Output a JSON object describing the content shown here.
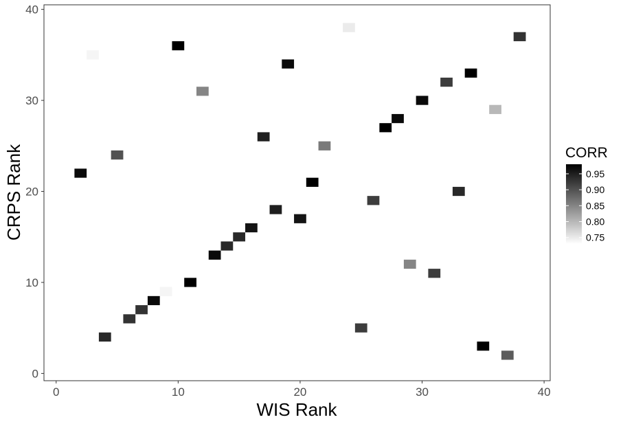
{
  "chart_data": {
    "type": "heatmap",
    "title": "",
    "xlabel": "WIS Rank",
    "ylabel": "CRPS Rank",
    "xlim": [
      -1,
      40.5
    ],
    "ylim": [
      -0.8,
      40.5
    ],
    "x_ticks": [
      0,
      10,
      20,
      30,
      40
    ],
    "y_ticks": [
      0,
      10,
      20,
      30,
      40
    ],
    "grid": false,
    "legend": {
      "title": "CORR",
      "placement": "right",
      "range": [
        0.73,
        0.98
      ],
      "ticks": [
        0.75,
        0.8,
        0.85,
        0.9,
        0.95
      ],
      "tick_labels": [
        "0.75",
        "0.80",
        "0.85",
        "0.90",
        "0.95"
      ]
    },
    "points": [
      {
        "x": 2,
        "y": 22,
        "corr": 0.97
      },
      {
        "x": 3,
        "y": 35,
        "corr": 0.74
      },
      {
        "x": 4,
        "y": 4,
        "corr": 0.94
      },
      {
        "x": 5,
        "y": 24,
        "corr": 0.9
      },
      {
        "x": 6,
        "y": 6,
        "corr": 0.93
      },
      {
        "x": 7,
        "y": 7,
        "corr": 0.93
      },
      {
        "x": 8,
        "y": 8,
        "corr": 0.97
      },
      {
        "x": 9,
        "y": 9,
        "corr": 0.74
      },
      {
        "x": 10,
        "y": 36,
        "corr": 0.98
      },
      {
        "x": 11,
        "y": 10,
        "corr": 0.98
      },
      {
        "x": 12,
        "y": 31,
        "corr": 0.85
      },
      {
        "x": 13,
        "y": 13,
        "corr": 0.97
      },
      {
        "x": 14,
        "y": 14,
        "corr": 0.94
      },
      {
        "x": 15,
        "y": 15,
        "corr": 0.94
      },
      {
        "x": 16,
        "y": 16,
        "corr": 0.96
      },
      {
        "x": 17,
        "y": 26,
        "corr": 0.95
      },
      {
        "x": 18,
        "y": 18,
        "corr": 0.95
      },
      {
        "x": 19,
        "y": 34,
        "corr": 0.97
      },
      {
        "x": 20,
        "y": 17,
        "corr": 0.96
      },
      {
        "x": 21,
        "y": 21,
        "corr": 0.98
      },
      {
        "x": 22,
        "y": 25,
        "corr": 0.86
      },
      {
        "x": 24,
        "y": 38,
        "corr": 0.75
      },
      {
        "x": 25,
        "y": 5,
        "corr": 0.92
      },
      {
        "x": 26,
        "y": 19,
        "corr": 0.92
      },
      {
        "x": 27,
        "y": 27,
        "corr": 0.98
      },
      {
        "x": 28,
        "y": 28,
        "corr": 0.97
      },
      {
        "x": 29,
        "y": 12,
        "corr": 0.85
      },
      {
        "x": 30,
        "y": 30,
        "corr": 0.97
      },
      {
        "x": 31,
        "y": 11,
        "corr": 0.92
      },
      {
        "x": 32,
        "y": 32,
        "corr": 0.92
      },
      {
        "x": 33,
        "y": 20,
        "corr": 0.94
      },
      {
        "x": 34,
        "y": 33,
        "corr": 0.98
      },
      {
        "x": 35,
        "y": 3,
        "corr": 0.98
      },
      {
        "x": 36,
        "y": 29,
        "corr": 0.8
      },
      {
        "x": 37,
        "y": 2,
        "corr": 0.89
      },
      {
        "x": 38,
        "y": 37,
        "corr": 0.93
      }
    ]
  }
}
